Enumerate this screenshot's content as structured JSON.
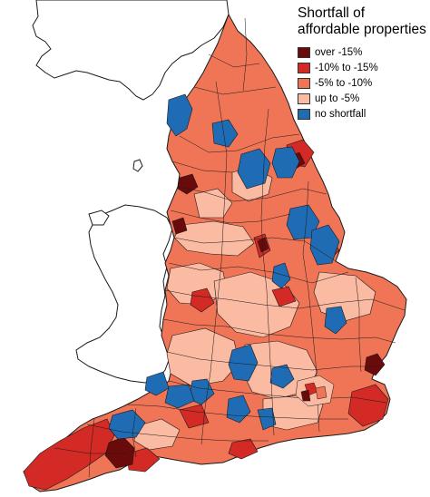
{
  "legend": {
    "title": "Shortfall of affordable properties",
    "items": [
      {
        "label": "over -15%",
        "color": "#6b0a0a"
      },
      {
        "label": "-10% to -15%",
        "color": "#d42a26"
      },
      {
        "label": "-5% to -10%",
        "color": "#f07456"
      },
      {
        "label": "up to -5%",
        "color": "#fbbaa2"
      },
      {
        "label": "no shortfall",
        "color": "#1f6cb4"
      }
    ]
  },
  "colors": {
    "outline": "#1a1a1a",
    "neighbour_fill": "#ffffff",
    "sea": "#ffffff"
  }
}
